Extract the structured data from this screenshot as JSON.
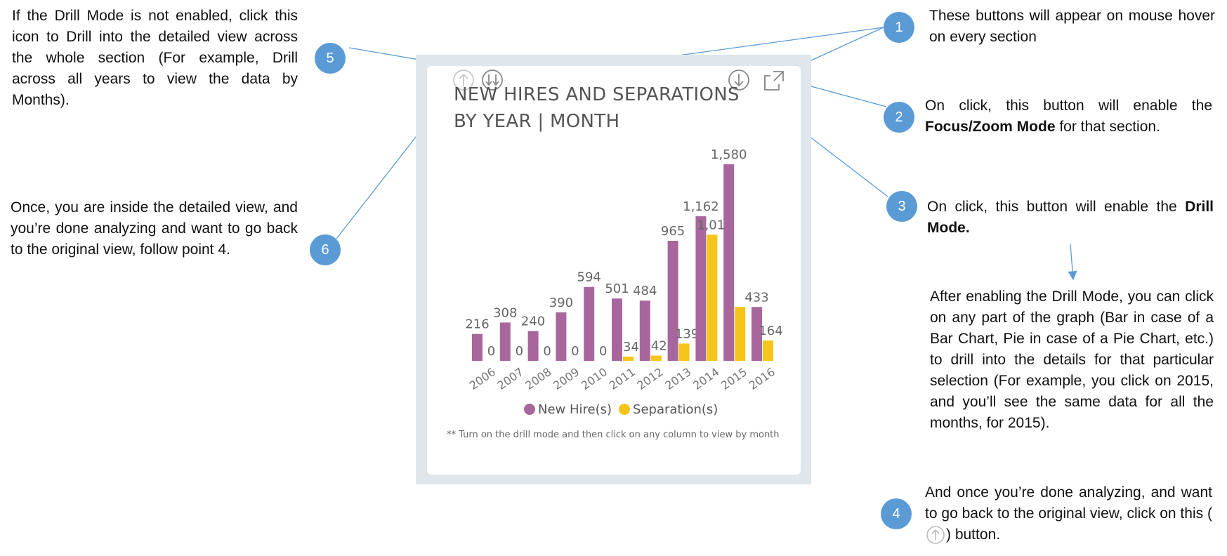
{
  "notes": {
    "n5": "If the Drill Mode is not enabled, click this icon to Drill into the detailed view across the whole section (For example, Drill across all years to view the data by Months).",
    "n6": "Once, you are inside the detailed view, and you’re done analyzing and want to go back to the original view, follow point 4.",
    "n1": "These buttons will appear on mouse hover on every section",
    "n2_pre": "On click, this button will enable the ",
    "n2_bold": "Focus/Zoom Mode",
    "n2_post": " for that section.",
    "n3_pre": "On click, this button will enable the ",
    "n3_bold": "Drill Mode.",
    "after": "After enabling the Drill Mode, you can click on any part of the graph (Bar in case of a Bar Chart, Pie in case of a Pie Chart, etc.) to drill into the details for that particular selection (For example, you click on 2015, and you’ll see the same data for all the months, for 2015).",
    "n4_pre": "And once you’re done analyzing, and want to go back to the original view, click on this (",
    "n4_post": ") button."
  },
  "badges": [
    "1",
    "2",
    "3",
    "4",
    "5",
    "6"
  ],
  "card": {
    "title_line1": "NEW HIRES AND SEPARATIONS",
    "title_line2": "BY YEAR | MONTH",
    "icons": [
      "drill-up-icon",
      "drill-down-all-icon",
      "drill-mode-icon",
      "focus-mode-icon"
    ],
    "footnote": "** Turn on the drill mode and then click on any column to view by month"
  },
  "colors": {
    "badge": "#5b9bd5",
    "new_hire": "#a8679c",
    "separation": "#f5c518",
    "card_border": "#dfe6ec"
  },
  "chart_data": {
    "type": "bar",
    "title": "NEW HIRES AND SEPARATIONS BY YEAR | MONTH",
    "categories": [
      "2006",
      "2007",
      "2008",
      "2009",
      "2010",
      "2011",
      "2012",
      "2013",
      "2014",
      "2015",
      "2016"
    ],
    "series": [
      {
        "name": "New Hire(s)",
        "values": [
          216,
          308,
          240,
          390,
          594,
          501,
          484,
          965,
          1162,
          1580,
          433
        ]
      },
      {
        "name": "Separation(s)",
        "values": [
          0,
          0,
          0,
          0,
          0,
          34,
          42,
          139,
          1014,
          434,
          164
        ]
      }
    ],
    "data_labels": {
      "New Hire(s)": [
        "216",
        "308",
        "240",
        "390",
        "594",
        "501",
        "484",
        "965",
        "1,162",
        "1,580",
        "433"
      ],
      "Separation(s)": [
        "0",
        "0",
        "0",
        "0",
        "0",
        "34",
        "42",
        "139",
        "1,014",
        "",
        "164"
      ]
    },
    "ylim": [
      0,
      1580
    ],
    "grid": false,
    "legend": "bottom"
  }
}
